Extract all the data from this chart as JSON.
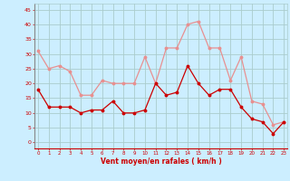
{
  "x": [
    0,
    1,
    2,
    3,
    4,
    5,
    6,
    7,
    8,
    9,
    10,
    11,
    12,
    13,
    14,
    15,
    16,
    17,
    18,
    19,
    20,
    21,
    22,
    23
  ],
  "wind_mean": [
    18,
    12,
    12,
    12,
    10,
    11,
    11,
    14,
    10,
    10,
    11,
    20,
    16,
    17,
    26,
    20,
    16,
    18,
    18,
    12,
    8,
    7,
    3,
    7
  ],
  "wind_gust": [
    31,
    25,
    26,
    24,
    16,
    16,
    21,
    20,
    20,
    20,
    29,
    20,
    32,
    32,
    40,
    41,
    32,
    32,
    21,
    29,
    14,
    13,
    6,
    7
  ],
  "mean_color": "#cc0000",
  "gust_color": "#e89090",
  "bg_color": "#cceeff",
  "grid_color": "#aacccc",
  "xlabel": "Vent moyen/en rafales ( km/h )",
  "yticks": [
    0,
    5,
    10,
    15,
    20,
    25,
    30,
    35,
    40,
    45
  ],
  "xlim": [
    -0.3,
    23.3
  ],
  "ylim": [
    -2,
    47
  ]
}
